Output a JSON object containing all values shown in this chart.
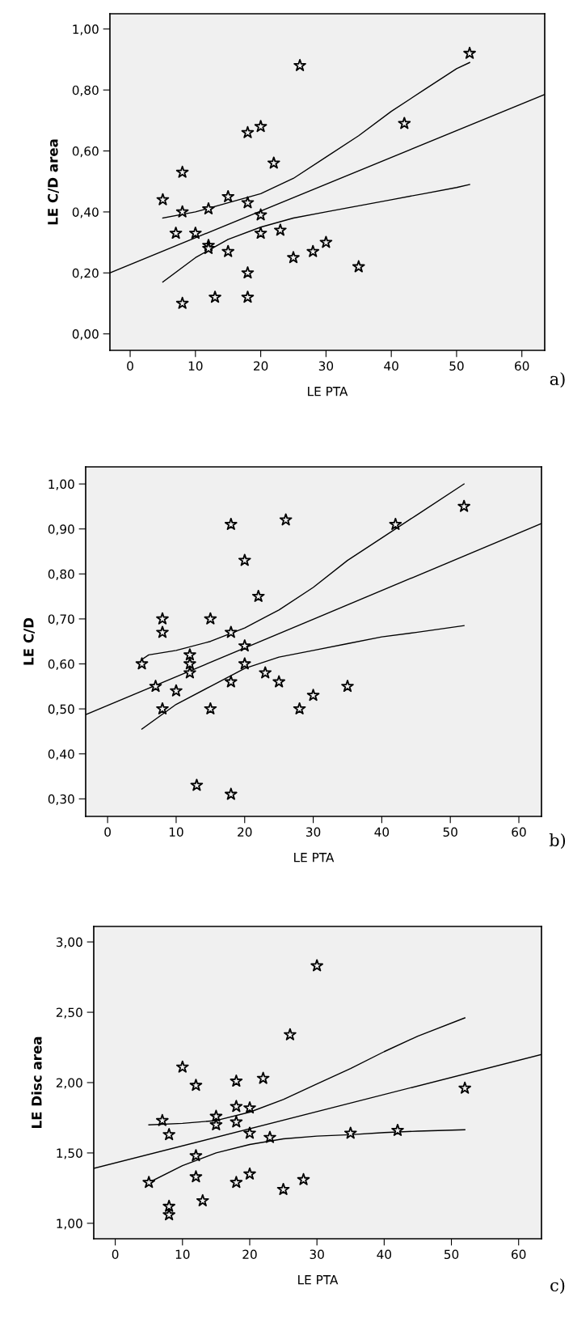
{
  "chart_data": [
    {
      "type": "scatter",
      "xlabel": "LE PTA",
      "ylabel": "LE C/D area",
      "annotations": [
        "a)"
      ],
      "grid": false,
      "xlim": [
        -3.1,
        63.5
      ],
      "xticks": [
        0,
        10,
        20,
        30,
        40,
        50,
        60
      ],
      "ylim": [
        -0.054,
        1.05
      ],
      "yticks": [
        {
          "value": 0,
          "label": "0,00"
        },
        {
          "value": 0.2,
          "label": "0,20"
        },
        {
          "value": 0.4,
          "label": "0,40"
        },
        {
          "value": 0.6,
          "label": "0,60"
        },
        {
          "value": 0.8,
          "label": "0,80"
        },
        {
          "value": 1.0,
          "label": "1,00"
        }
      ],
      "series": [
        {
          "marker": "star",
          "color": "#000000",
          "x": [
            5,
            7,
            8,
            8,
            8,
            10,
            12,
            12,
            12,
            13,
            15,
            15,
            18,
            18,
            18,
            18,
            20,
            20,
            20,
            22,
            23,
            25,
            26,
            28,
            30,
            35,
            42,
            52
          ],
          "values": [
            0.44,
            0.33,
            0.53,
            0.4,
            0.1,
            0.33,
            0.41,
            0.29,
            0.28,
            0.12,
            0.45,
            0.27,
            0.66,
            0.43,
            0.2,
            0.12,
            0.68,
            0.39,
            0.33,
            0.56,
            0.34,
            0.25,
            0.88,
            0.27,
            0.3,
            0.22,
            0.69,
            0.92
          ]
        },
        {
          "type": "line",
          "color": "#000000",
          "x": [
            -3.1,
            63.5
          ],
          "values": [
            0.2,
            0.785
          ]
        },
        {
          "type": "line",
          "color": "#000000",
          "x": [
            5,
            10,
            15,
            20,
            25,
            30,
            35,
            40,
            45,
            50,
            52
          ],
          "values": [
            0.38,
            0.4,
            0.43,
            0.46,
            0.51,
            0.58,
            0.65,
            0.73,
            0.8,
            0.87,
            0.89
          ]
        },
        {
          "type": "line",
          "color": "#000000",
          "x": [
            5,
            10,
            15,
            20,
            25,
            30,
            35,
            40,
            45,
            50,
            52
          ],
          "values": [
            0.17,
            0.25,
            0.31,
            0.35,
            0.38,
            0.4,
            0.42,
            0.44,
            0.46,
            0.48,
            0.49
          ]
        }
      ]
    },
    {
      "type": "scatter",
      "xlabel": "LE PTA",
      "ylabel": "LE C/D",
      "annotations": [
        "b)"
      ],
      "grid": false,
      "xlim": [
        -3.2,
        63.3
      ],
      "xticks": [
        0,
        10,
        20,
        30,
        40,
        50,
        60
      ],
      "ylim": [
        0.261,
        1.038
      ],
      "yticks": [
        {
          "value": 0.3,
          "label": "0,30"
        },
        {
          "value": 0.4,
          "label": "0,40"
        },
        {
          "value": 0.5,
          "label": "0,50"
        },
        {
          "value": 0.6,
          "label": "0,60"
        },
        {
          "value": 0.7,
          "label": "0,70"
        },
        {
          "value": 0.8,
          "label": "0,80"
        },
        {
          "value": 0.9,
          "label": "0,90"
        },
        {
          "value": 1.0,
          "label": "1,00"
        }
      ],
      "series": [
        {
          "marker": "star",
          "color": "#000000",
          "x": [
            5,
            7,
            8,
            8,
            8,
            10,
            12,
            12,
            12,
            13,
            15,
            15,
            18,
            18,
            18,
            18,
            20,
            20,
            20,
            22,
            23,
            25,
            26,
            28,
            30,
            35,
            42,
            52
          ],
          "values": [
            0.6,
            0.55,
            0.7,
            0.67,
            0.5,
            0.54,
            0.62,
            0.6,
            0.58,
            0.33,
            0.7,
            0.5,
            0.91,
            0.67,
            0.56,
            0.31,
            0.83,
            0.64,
            0.6,
            0.75,
            0.58,
            0.56,
            0.92,
            0.5,
            0.53,
            0.55,
            0.91,
            0.95
          ]
        },
        {
          "type": "line",
          "color": "#000000",
          "x": [
            -3.2,
            63.3
          ],
          "values": [
            0.487,
            0.912
          ]
        },
        {
          "type": "line",
          "color": "#000000",
          "x": [
            5,
            6,
            10,
            15,
            20,
            25,
            30,
            35,
            40,
            45,
            52
          ],
          "values": [
            0.61,
            0.62,
            0.63,
            0.65,
            0.68,
            0.72,
            0.77,
            0.83,
            0.88,
            0.93,
            1.0
          ]
        },
        {
          "type": "line",
          "color": "#000000",
          "x": [
            5,
            10,
            15,
            20,
            25,
            30,
            35,
            40,
            45,
            52
          ],
          "values": [
            0.455,
            0.51,
            0.55,
            0.59,
            0.615,
            0.63,
            0.645,
            0.66,
            0.67,
            0.685
          ]
        }
      ]
    },
    {
      "type": "scatter",
      "xlabel": "LE PTA",
      "ylabel": "LE Disc area",
      "annotations": [
        "c)"
      ],
      "grid": false,
      "xlim": [
        -3.2,
        63.4
      ],
      "xticks": [
        0,
        10,
        20,
        30,
        40,
        50,
        60
      ],
      "ylim": [
        0.89,
        3.11
      ],
      "yticks": [
        {
          "value": 1.0,
          "label": "1,00"
        },
        {
          "value": 1.5,
          "label": "1,50"
        },
        {
          "value": 2.0,
          "label": "2,00"
        },
        {
          "value": 2.5,
          "label": "2,50"
        },
        {
          "value": 3.0,
          "label": "3,00"
        }
      ],
      "series": [
        {
          "marker": "star",
          "color": "#000000",
          "x": [
            5,
            7,
            8,
            8,
            8,
            10,
            12,
            12,
            12,
            13,
            15,
            15,
            18,
            18,
            18,
            18,
            20,
            20,
            20,
            22,
            23,
            25,
            26,
            28,
            30,
            35,
            42,
            52
          ],
          "values": [
            1.29,
            1.73,
            1.63,
            1.12,
            1.06,
            2.11,
            1.98,
            1.48,
            1.33,
            1.16,
            1.76,
            1.7,
            2.01,
            1.83,
            1.72,
            1.29,
            1.82,
            1.64,
            1.35,
            2.03,
            1.61,
            1.24,
            2.34,
            1.31,
            2.83,
            1.64,
            1.66,
            1.96
          ]
        },
        {
          "type": "line",
          "color": "#000000",
          "x": [
            -3.2,
            63.4
          ],
          "values": [
            1.39,
            2.2
          ]
        },
        {
          "type": "line",
          "color": "#000000",
          "x": [
            5,
            10,
            15,
            20,
            25,
            30,
            35,
            40,
            45,
            52
          ],
          "values": [
            1.7,
            1.71,
            1.73,
            1.79,
            1.88,
            1.99,
            2.1,
            2.22,
            2.33,
            2.46
          ]
        },
        {
          "type": "line",
          "color": "#000000",
          "x": [
            5,
            10,
            15,
            20,
            25,
            30,
            35,
            40,
            45,
            52
          ],
          "values": [
            1.29,
            1.41,
            1.5,
            1.56,
            1.6,
            1.62,
            1.63,
            1.645,
            1.655,
            1.665
          ]
        }
      ]
    }
  ]
}
